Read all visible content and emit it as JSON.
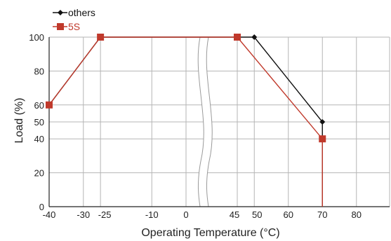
{
  "chart_data": {
    "type": "line",
    "xlabel": "Operating Temperature (°C)",
    "ylabel": "Load (%)",
    "x_ticks": [
      "-40",
      "-30",
      "-25",
      "-10",
      "0",
      "45",
      "50",
      "60",
      "70",
      "80"
    ],
    "y_ticks": [
      "0",
      "20",
      "40",
      "50",
      "60",
      "80",
      "100"
    ],
    "axis_break": "between 0 and 45",
    "grid": true,
    "legend": "top-left",
    "series": [
      {
        "name": "others",
        "color": "#111111",
        "marker": "diamond",
        "points": [
          {
            "x": -40,
            "y": 60
          },
          {
            "x": -25,
            "y": 100
          },
          {
            "x": 50,
            "y": 100
          },
          {
            "x": 70,
            "y": 50
          },
          {
            "x": 70,
            "y": 0
          }
        ]
      },
      {
        "name": "5S",
        "color": "#c0392b",
        "marker": "square",
        "points": [
          {
            "x": -40,
            "y": 60
          },
          {
            "x": -25,
            "y": 100
          },
          {
            "x": 45,
            "y": 100
          },
          {
            "x": 70,
            "y": 40
          },
          {
            "x": 70,
            "y": 0
          }
        ]
      }
    ]
  }
}
